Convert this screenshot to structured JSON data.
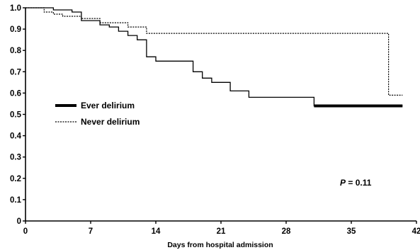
{
  "chart_data": {
    "type": "line",
    "xlabel": "Days from hospital admission",
    "ylabel": "",
    "xlim": [
      0,
      42
    ],
    "ylim": [
      0,
      1.0
    ],
    "x_ticks": [
      "0",
      "7",
      "14",
      "21",
      "28",
      "35",
      "42"
    ],
    "y_ticks": [
      "0",
      "0.1",
      "0.2",
      "0.3",
      "0.4",
      "0.5",
      "0.6",
      "0.7",
      "0.8",
      "0.9",
      "1.0"
    ],
    "annotation": {
      "p_label": "P",
      "p_rest": " = 0.11"
    },
    "legend": {
      "position": "left-middle"
    },
    "series": [
      {
        "name": "Ever delirium",
        "style": "solid-thin",
        "steps": [
          [
            0,
            1.0
          ],
          [
            3,
            0.99
          ],
          [
            5,
            0.98
          ],
          [
            6,
            0.94
          ],
          [
            8,
            0.92
          ],
          [
            9,
            0.91
          ],
          [
            10,
            0.89
          ],
          [
            11,
            0.87
          ],
          [
            12,
            0.85
          ],
          [
            13,
            0.77
          ],
          [
            14,
            0.75
          ],
          [
            18,
            0.7
          ],
          [
            19,
            0.67
          ],
          [
            20,
            0.65
          ],
          [
            22,
            0.61
          ],
          [
            24,
            0.58
          ],
          [
            31,
            0.54
          ],
          [
            40.5,
            0.54
          ]
        ]
      },
      {
        "name": "Never delirium",
        "style": "dotted",
        "steps": [
          [
            0,
            1.0
          ],
          [
            2,
            0.98
          ],
          [
            3,
            0.97
          ],
          [
            4,
            0.96
          ],
          [
            6,
            0.95
          ],
          [
            8,
            0.93
          ],
          [
            11,
            0.91
          ],
          [
            13,
            0.88
          ],
          [
            39,
            0.59
          ],
          [
            40.5,
            0.59
          ]
        ]
      },
      {
        "name": "",
        "style": "solid-thick",
        "steps": [
          [
            31,
            0.54
          ],
          [
            40.5,
            0.54
          ]
        ]
      }
    ]
  }
}
